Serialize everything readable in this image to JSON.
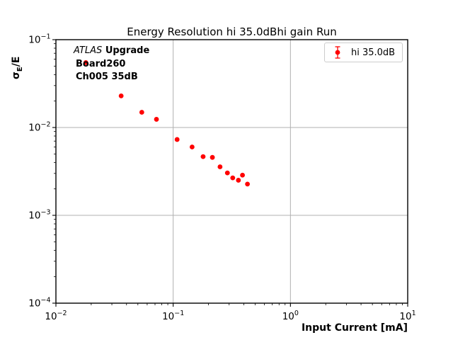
{
  "chart_data": {
    "type": "scatter",
    "title": "Energy Resolution hi 35.0dBhi gain Run",
    "xlabel": "Input Current [mA]",
    "ylabel": "σE/E",
    "ylabel_parts": {
      "sigma": "σ",
      "subscript": "E",
      "rest": "/E"
    },
    "xscale": "log",
    "yscale": "log",
    "xlim": [
      0.01,
      10
    ],
    "ylim": [
      0.0001,
      0.1
    ],
    "x_tick_exponents": [
      -2,
      -1,
      0,
      1
    ],
    "y_tick_exponents": [
      -1,
      -2,
      -3,
      -4
    ],
    "grid": true,
    "grid_color": "#b0b0b0",
    "frame_color": "#000000",
    "legend": {
      "position": "upper right",
      "label": "hi 35.0dB"
    },
    "annotations": {
      "experiment": "ATLAS",
      "program": "Upgrade",
      "board": "Board260",
      "channel": "Ch005 35dB"
    },
    "series": [
      {
        "name": "hi 35.0dB",
        "color": "#ff0000",
        "marker": "circle-errorbar",
        "x": [
          0.018,
          0.036,
          0.054,
          0.072,
          0.108,
          0.145,
          0.18,
          0.216,
          0.251,
          0.29,
          0.322,
          0.36,
          0.39,
          0.43
        ],
        "y": [
          0.0548,
          0.0229,
          0.0149,
          0.0124,
          0.0073,
          0.006,
          0.00466,
          0.00457,
          0.00357,
          0.00304,
          0.00267,
          0.00251,
          0.00287,
          0.00227
        ]
      }
    ]
  }
}
